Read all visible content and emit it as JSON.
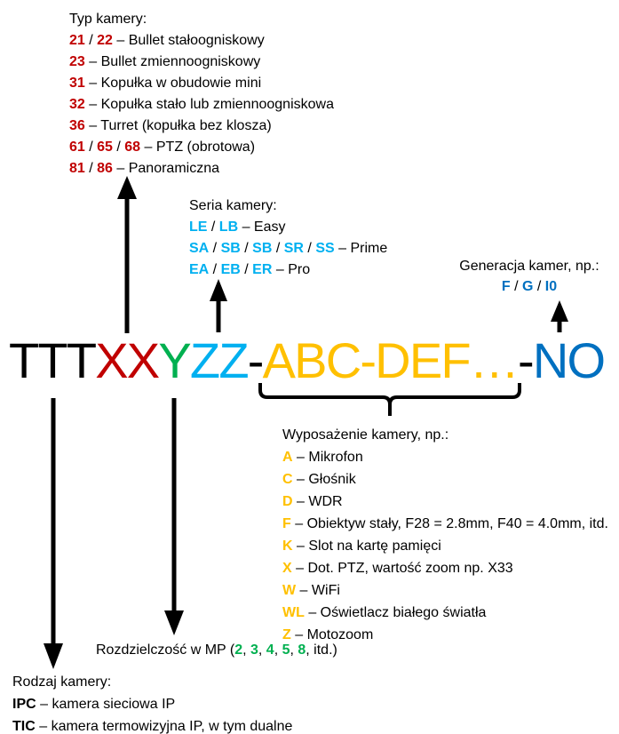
{
  "colors": {
    "red": "#C00000",
    "green": "#00B050",
    "cyan": "#00B0F0",
    "yellow": "#FFC000",
    "blue": "#0070C0",
    "black": "#000000",
    "arrow": "#000000"
  },
  "model_code": {
    "segments": [
      {
        "text": "TTT",
        "color": "#000000"
      },
      {
        "text": "XX",
        "color": "#C00000"
      },
      {
        "text": "Y",
        "color": "#00B050"
      },
      {
        "text": "ZZ",
        "color": "#00B0F0"
      },
      {
        "text": "-",
        "color": "#000000"
      },
      {
        "text": "ABC-DEF…",
        "color": "#FFC000"
      },
      {
        "text": "-",
        "color": "#000000"
      },
      {
        "text": "NO",
        "color": "#0070C0"
      }
    ]
  },
  "typ_kamery": {
    "title": "Typ kamery:",
    "color": "red",
    "items": [
      {
        "codes": [
          "21",
          "22"
        ],
        "label": "Bullet stałoogniskowy"
      },
      {
        "codes": [
          "23"
        ],
        "label": "Bullet zmiennoogniskowy"
      },
      {
        "codes": [
          "31"
        ],
        "label": "Kopułka w obudowie mini"
      },
      {
        "codes": [
          "32"
        ],
        "label": "Kopułka stało lub zmiennoogniskowa"
      },
      {
        "codes": [
          "36"
        ],
        "label": "Turret (kopułka bez klosza)"
      },
      {
        "codes": [
          "61",
          "65",
          "68"
        ],
        "label": "PTZ (obrotowa)"
      },
      {
        "codes": [
          "81",
          "86"
        ],
        "label": "Panoramiczna"
      }
    ]
  },
  "seria_kamery": {
    "title": "Seria kamery:",
    "color": "cyan",
    "items": [
      {
        "codes": [
          "LE",
          "LB"
        ],
        "label": "Easy"
      },
      {
        "codes": [
          "SA",
          "SB",
          "SB",
          "SR",
          "SS"
        ],
        "label": "Prime"
      },
      {
        "codes": [
          "EA",
          "EB",
          "ER"
        ],
        "label": "Pro"
      }
    ]
  },
  "generacja": {
    "title": "Generacja kamer, np.:",
    "color": "blue",
    "codes": [
      "F",
      "G",
      "I0"
    ]
  },
  "wyposazenie": {
    "title": "Wyposażenie kamery, np.:",
    "color": "yellow",
    "items": [
      {
        "codes": [
          "A"
        ],
        "label": "Mikrofon"
      },
      {
        "codes": [
          "C"
        ],
        "label": "Głośnik"
      },
      {
        "codes": [
          "D"
        ],
        "label": "WDR"
      },
      {
        "codes": [
          "F"
        ],
        "label": "Obiektyw stały, F28 = 2.8mm, F40 = 4.0mm, itd."
      },
      {
        "codes": [
          "K"
        ],
        "label": "Slot na kartę pamięci"
      },
      {
        "codes": [
          "X"
        ],
        "label": "Dot. PTZ, wartość zoom np. X33"
      },
      {
        "codes": [
          "W"
        ],
        "label": "WiFi"
      },
      {
        "codes": [
          "WL"
        ],
        "label": "Oświetlacz białego światła"
      },
      {
        "codes": [
          "Z"
        ],
        "label": "Motozoom"
      }
    ]
  },
  "rozdzielczosc": {
    "prefix": "Rozdzielczość w MP (",
    "values": [
      "2",
      "3",
      "4",
      "5",
      "8"
    ],
    "suffix": "itd.)",
    "color": "green"
  },
  "rodzaj_kamery": {
    "title": "Rodzaj kamery:",
    "color": "black",
    "items": [
      {
        "codes": [
          "IPC"
        ],
        "label": "kamera sieciowa IP"
      },
      {
        "codes": [
          "TIC"
        ],
        "label": "kamera termowizyjna IP, w tym dualne"
      }
    ]
  }
}
